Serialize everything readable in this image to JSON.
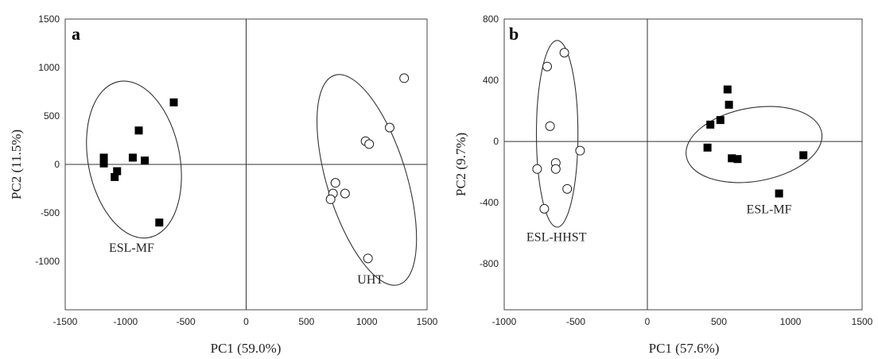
{
  "chart_data": [
    {
      "type": "scatter",
      "panel_label": "a",
      "xlabel": "PC1 (59.0%)",
      "ylabel": "PC2 (11.5%)",
      "xlim": [
        -1500,
        1500
      ],
      "ylim": [
        -1500,
        1500
      ],
      "xticks": [
        -1500,
        -1000,
        -500,
        0,
        500,
        1000,
        1500
      ],
      "yticks": [
        -1000,
        -500,
        0,
        500,
        1000,
        1500
      ],
      "reference_lines": {
        "x": 0,
        "y": 0
      },
      "series": [
        {
          "marker": "filled-square",
          "points": [
            {
              "x": -600,
              "y": 640
            },
            {
              "x": -890,
              "y": 350
            },
            {
              "x": -1180,
              "y": 70
            },
            {
              "x": -1180,
              "y": 10
            },
            {
              "x": -940,
              "y": 70
            },
            {
              "x": -840,
              "y": 40
            },
            {
              "x": -1070,
              "y": -70
            },
            {
              "x": -1090,
              "y": -130
            },
            {
              "x": -720,
              "y": -600
            }
          ]
        },
        {
          "marker": "open-circle",
          "points": [
            {
              "x": 1310,
              "y": 890
            },
            {
              "x": 1190,
              "y": 380
            },
            {
              "x": 990,
              "y": 240
            },
            {
              "x": 1020,
              "y": 210
            },
            {
              "x": 740,
              "y": -190
            },
            {
              "x": 720,
              "y": -300
            },
            {
              "x": 700,
              "y": -360
            },
            {
              "x": 820,
              "y": -300
            },
            {
              "x": 1010,
              "y": -970
            }
          ]
        }
      ],
      "groups": [
        {
          "label": "ESL-MF",
          "cx": -930,
          "cy": 50,
          "rx": 380,
          "ry": 820,
          "rotation_deg": -11,
          "label_x": -950,
          "label_y": -900
        },
        {
          "label": "UHT",
          "cx": 1000,
          "cy": -160,
          "rx": 330,
          "ry": 1130,
          "rotation_deg": -17,
          "label_x": 1030,
          "label_y": -1230
        }
      ]
    },
    {
      "type": "scatter",
      "panel_label": "b",
      "xlabel": "PC1 (57.6%)",
      "ylabel": "PC2 (9.7%)",
      "xlim": [
        -1000,
        1500
      ],
      "ylim": [
        -1100,
        800
      ],
      "xticks": [
        -1000,
        -500,
        0,
        500,
        1000,
        1500
      ],
      "yticks": [
        -800,
        -400,
        0,
        400,
        800
      ],
      "reference_lines": {
        "x": 0,
        "y": 0
      },
      "series": [
        {
          "marker": "open-circle",
          "points": [
            {
              "x": -580,
              "y": 580
            },
            {
              "x": -700,
              "y": 490
            },
            {
              "x": -680,
              "y": 100
            },
            {
              "x": -470,
              "y": -60
            },
            {
              "x": -640,
              "y": -140
            },
            {
              "x": -640,
              "y": -180
            },
            {
              "x": -770,
              "y": -180
            },
            {
              "x": -560,
              "y": -310
            },
            {
              "x": -720,
              "y": -440
            }
          ]
        },
        {
          "marker": "filled-square",
          "points": [
            {
              "x": 560,
              "y": 340
            },
            {
              "x": 570,
              "y": 240
            },
            {
              "x": 510,
              "y": 140
            },
            {
              "x": 440,
              "y": 110
            },
            {
              "x": 420,
              "y": -40
            },
            {
              "x": 590,
              "y": -110
            },
            {
              "x": 630,
              "y": -115
            },
            {
              "x": 1090,
              "y": -90
            },
            {
              "x": 920,
              "y": -340
            }
          ]
        }
      ],
      "groups": [
        {
          "label": "ESL-HHST",
          "cx": -630,
          "cy": 50,
          "rx": 145,
          "ry": 610,
          "rotation_deg": 0,
          "label_x": -635,
          "label_y": -650
        },
        {
          "label": "ESL-MF",
          "cx": 745,
          "cy": -20,
          "rx": 480,
          "ry": 240,
          "rotation_deg": -10,
          "label_x": 850,
          "label_y": -470
        }
      ]
    }
  ]
}
